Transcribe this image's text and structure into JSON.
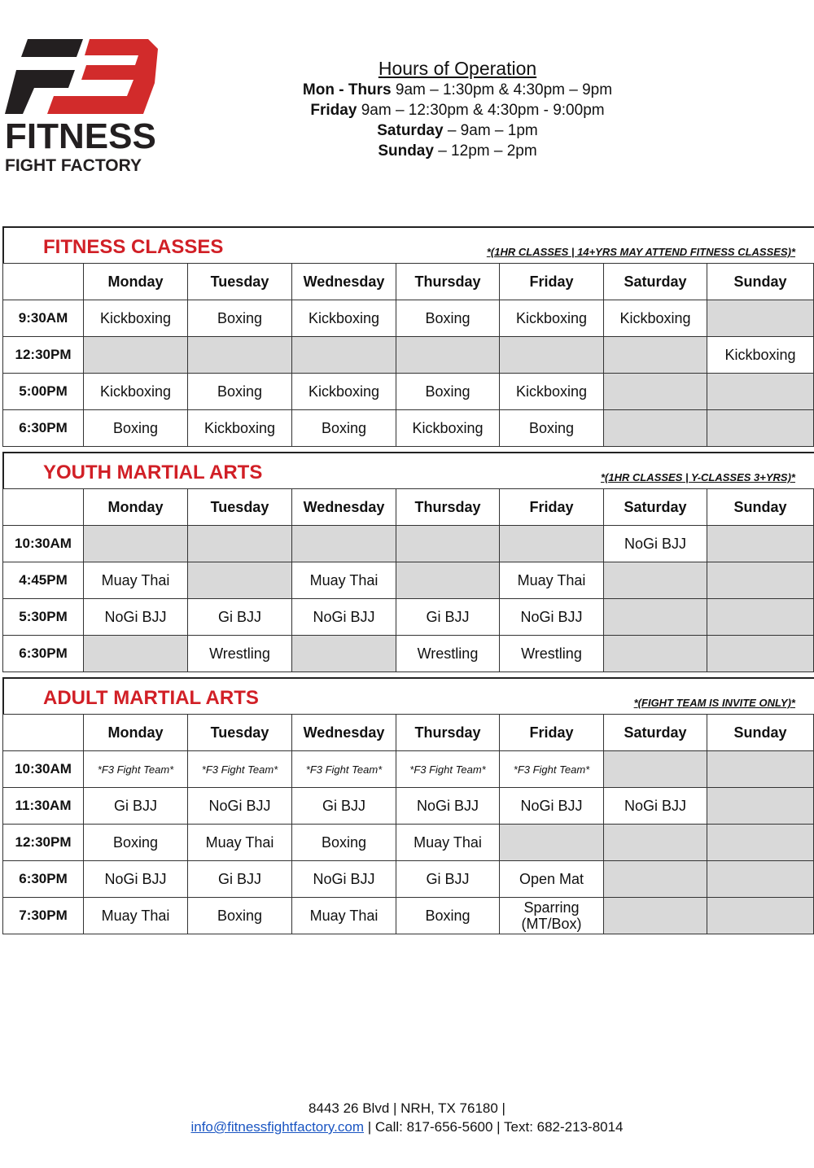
{
  "logo": {
    "text_line1": "FITNESS",
    "text_line2": "FIGHT FACTORY",
    "mark": "F3",
    "colors": {
      "dark": "#231f20",
      "red": "#d22b2b"
    }
  },
  "hours": {
    "title": "Hours of Operation",
    "lines": [
      {
        "label": "Mon - Thurs",
        "value": " 9am – 1:30pm & 4:30pm – 9pm"
      },
      {
        "label": "Friday",
        "value": " 9am – 12:30pm & 4:30pm - 9:00pm"
      },
      {
        "label": "Saturday",
        "value": " – 9am – 1pm"
      },
      {
        "label": "Sunday",
        "value": " – 12pm – 2pm"
      }
    ]
  },
  "colors": {
    "section_title": "#d11f26",
    "empty_cell": "#d9d9d9",
    "link": "#1a55c2"
  },
  "days": [
    "Monday",
    "Tuesday",
    "Wednesday",
    "Thursday",
    "Friday",
    "Saturday",
    "Sunday"
  ],
  "sections": [
    {
      "title": "FITNESS CLASSES",
      "note": "*(1HR CLASSES | 14+YRS MAY ATTEND FITNESS CLASSES)*",
      "rows": [
        {
          "time": "9:30AM",
          "cells": [
            "Kickboxing",
            "Boxing",
            "Kickboxing",
            "Boxing",
            "Kickboxing",
            "Kickboxing",
            null
          ]
        },
        {
          "time": "12:30PM",
          "cells": [
            null,
            null,
            null,
            null,
            null,
            null,
            "Kickboxing"
          ]
        },
        {
          "time": "5:00PM",
          "cells": [
            "Kickboxing",
            "Boxing",
            "Kickboxing",
            "Boxing",
            "Kickboxing",
            null,
            null
          ]
        },
        {
          "time": "6:30PM",
          "cells": [
            "Boxing",
            "Kickboxing",
            "Boxing",
            "Kickboxing",
            "Boxing",
            null,
            null
          ]
        }
      ]
    },
    {
      "title": "YOUTH MARTIAL ARTS",
      "note": "*(1HR CLASSES | Y-CLASSES 3+YRS)*",
      "rows": [
        {
          "time": "10:30AM",
          "cells": [
            null,
            null,
            null,
            null,
            null,
            "NoGi BJJ",
            null
          ]
        },
        {
          "time": "4:45PM",
          "cells": [
            "Muay Thai",
            null,
            "Muay Thai",
            null,
            "Muay Thai",
            null,
            null
          ]
        },
        {
          "time": "5:30PM",
          "cells": [
            "NoGi BJJ",
            "Gi BJJ",
            "NoGi BJJ",
            "Gi BJJ",
            "NoGi BJJ",
            null,
            null
          ]
        },
        {
          "time": "6:30PM",
          "cells": [
            null,
            "Wrestling",
            null,
            "Wrestling",
            "Wrestling",
            null,
            null
          ]
        }
      ]
    },
    {
      "title": "ADULT MARTIAL ARTS",
      "note": "*(FIGHT TEAM IS INVITE ONLY)*",
      "rows": [
        {
          "time": "10:30AM",
          "cells": [
            "*F3 Fight Team*",
            "*F3 Fight Team*",
            "*F3 Fight Team*",
            "*F3 Fight Team*",
            "*F3 Fight Team*",
            null,
            null
          ]
        },
        {
          "time": "11:30AM",
          "cells": [
            "Gi BJJ",
            "NoGi BJJ",
            "Gi BJJ",
            "NoGi BJJ",
            "NoGi BJJ",
            "NoGi BJJ",
            null
          ]
        },
        {
          "time": "12:30PM",
          "cells": [
            "Boxing",
            "Muay Thai",
            "Boxing",
            "Muay Thai",
            null,
            null,
            null
          ]
        },
        {
          "time": "6:30PM",
          "cells": [
            "NoGi BJJ",
            "Gi BJJ",
            "NoGi BJJ",
            "Gi BJJ",
            "Open Mat",
            null,
            null
          ]
        },
        {
          "time": "7:30PM",
          "cells": [
            "Muay Thai",
            "Boxing",
            "Muay Thai",
            "Boxing",
            "Sparring (MT/Box)",
            null,
            null
          ]
        }
      ]
    }
  ],
  "footer": {
    "address": "8443 26 Blvd | NRH, TX 76180 |",
    "email": "info@fitnessfightfactory.com",
    "contact": " | Call: 817-656-5600 | Text: 682-213-8014"
  }
}
